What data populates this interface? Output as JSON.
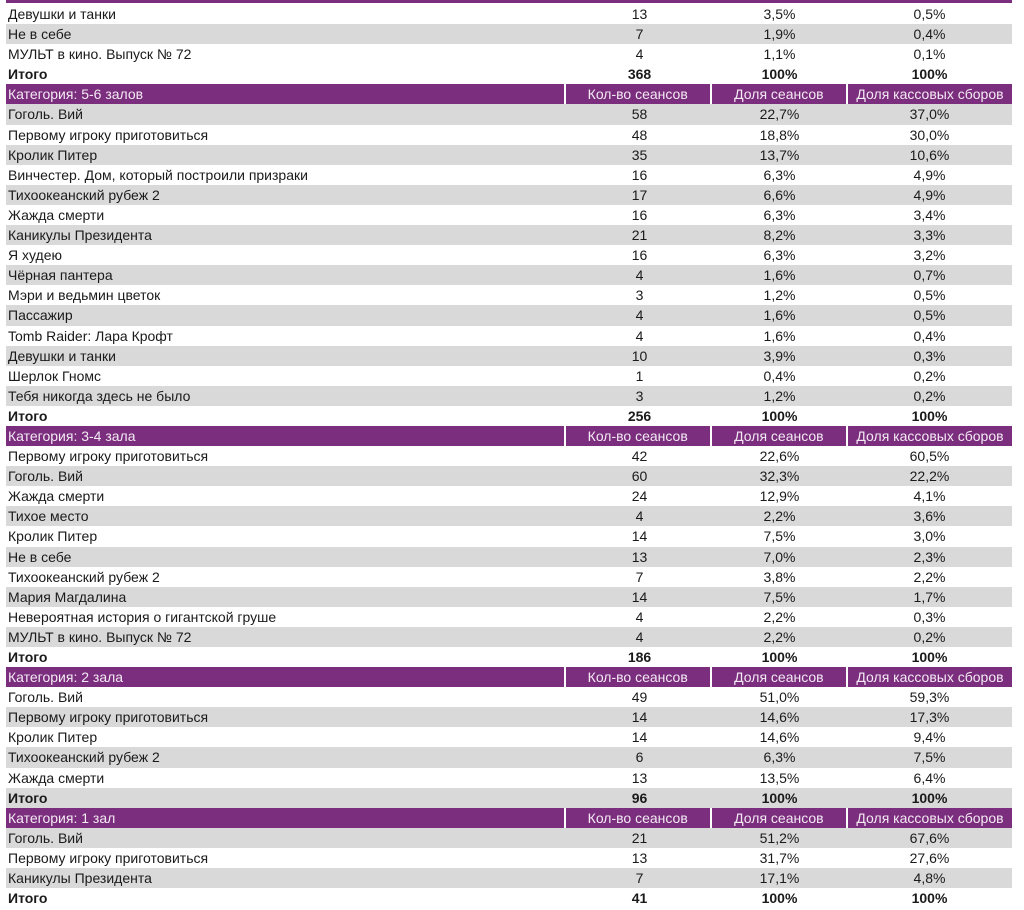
{
  "columns": {
    "count": "Кол-во сеансов",
    "share_sessions": "Доля сеансов",
    "share_box": "Доля кассовых сборов"
  },
  "total_label": "Итого",
  "colors": {
    "header": "#7b2e7d",
    "stripe": "#d9d9d9"
  },
  "sections": [
    {
      "title": null,
      "stripe_offset": 0,
      "total_shaded": false,
      "rows": [
        {
          "name": "Девушки и танки",
          "count": "13",
          "share": "3,5%",
          "box": "0,5%"
        },
        {
          "name": "Не в себе",
          "count": "7",
          "share": "1,9%",
          "box": "0,4%"
        },
        {
          "name": "МУЛЬТ в кино. Выпуск № 72",
          "count": "4",
          "share": "1,1%",
          "box": "0,1%"
        }
      ],
      "total": {
        "count": "368",
        "share": "100%",
        "box": "100%"
      }
    },
    {
      "title": "Категория: 5-6 залов",
      "stripe_offset": 1,
      "rows": [
        {
          "name": "Гоголь. Вий",
          "count": "58",
          "share": "22,7%",
          "box": "37,0%"
        },
        {
          "name": "Первому игроку приготовиться",
          "count": "48",
          "share": "18,8%",
          "box": "30,0%"
        },
        {
          "name": "Кролик Питер",
          "count": "35",
          "share": "13,7%",
          "box": "10,6%"
        },
        {
          "name": "Винчестер. Дом, который построили призраки",
          "count": "16",
          "share": "6,3%",
          "box": "4,9%"
        },
        {
          "name": "Тихоокеанский рубеж 2",
          "count": "17",
          "share": "6,6%",
          "box": "4,9%"
        },
        {
          "name": "Жажда смерти",
          "count": "16",
          "share": "6,3%",
          "box": "3,4%"
        },
        {
          "name": "Каникулы Президента",
          "count": "21",
          "share": "8,2%",
          "box": "3,3%"
        },
        {
          "name": "Я худею",
          "count": "16",
          "share": "6,3%",
          "box": "3,2%"
        },
        {
          "name": "Чёрная пантера",
          "count": "4",
          "share": "1,6%",
          "box": "0,7%"
        },
        {
          "name": "Мэри и ведьмин цветок",
          "count": "3",
          "share": "1,2%",
          "box": "0,5%"
        },
        {
          "name": "Пассажир",
          "count": "4",
          "share": "1,6%",
          "box": "0,5%"
        },
        {
          "name": "Tomb Raider: Лара Крофт",
          "count": "4",
          "share": "1,6%",
          "box": "0,4%"
        },
        {
          "name": "Девушки и танки",
          "count": "10",
          "share": "3,9%",
          "box": "0,3%"
        },
        {
          "name": "Шерлок Гномс",
          "count": "1",
          "share": "0,4%",
          "box": "0,2%"
        },
        {
          "name": "Тебя никогда здесь не было",
          "count": "3",
          "share": "1,2%",
          "box": "0,2%"
        }
      ],
      "total": {
        "count": "256",
        "share": "100%",
        "box": "100%"
      }
    },
    {
      "title": "Категория: 3-4 зала",
      "stripe_offset": 0,
      "rows": [
        {
          "name": "Первому игроку приготовиться",
          "count": "42",
          "share": "22,6%",
          "box": "60,5%"
        },
        {
          "name": "Гоголь. Вий",
          "count": "60",
          "share": "32,3%",
          "box": "22,2%"
        },
        {
          "name": "Жажда смерти",
          "count": "24",
          "share": "12,9%",
          "box": "4,1%"
        },
        {
          "name": "Тихое место",
          "count": "4",
          "share": "2,2%",
          "box": "3,6%"
        },
        {
          "name": "Кролик Питер",
          "count": "14",
          "share": "7,5%",
          "box": "3,0%"
        },
        {
          "name": "Не в себе",
          "count": "13",
          "share": "7,0%",
          "box": "2,3%"
        },
        {
          "name": "Тихоокеанский рубеж 2",
          "count": "7",
          "share": "3,8%",
          "box": "2,2%"
        },
        {
          "name": "Мария Магдалина",
          "count": "14",
          "share": "7,5%",
          "box": "1,7%"
        },
        {
          "name": "Невероятная история о гигантской груше",
          "count": "4",
          "share": "2,2%",
          "box": "0,3%"
        },
        {
          "name": "МУЛЬТ в кино. Выпуск № 72",
          "count": "4",
          "share": "2,2%",
          "box": "0,2%"
        }
      ],
      "total": {
        "count": "186",
        "share": "100%",
        "box": "100%"
      }
    },
    {
      "title": "Категория: 2 зала",
      "stripe_offset": 0,
      "rows": [
        {
          "name": "Гоголь. Вий",
          "count": "49",
          "share": "51,0%",
          "box": "59,3%"
        },
        {
          "name": "Первому игроку приготовиться",
          "count": "14",
          "share": "14,6%",
          "box": "17,3%"
        },
        {
          "name": "Кролик Питер",
          "count": "14",
          "share": "14,6%",
          "box": "9,4%"
        },
        {
          "name": "Тихоокеанский рубеж 2",
          "count": "6",
          "share": "6,3%",
          "box": "7,5%"
        },
        {
          "name": "Жажда смерти",
          "count": "13",
          "share": "13,5%",
          "box": "6,4%"
        }
      ],
      "total": {
        "count": "96",
        "share": "100%",
        "box": "100%"
      }
    },
    {
      "title": "Категория: 1 зал",
      "stripe_offset": 1,
      "rows": [
        {
          "name": "Гоголь. Вий",
          "count": "21",
          "share": "51,2%",
          "box": "67,6%"
        },
        {
          "name": "Первому игроку приготовиться",
          "count": "13",
          "share": "31,7%",
          "box": "27,6%"
        },
        {
          "name": "Каникулы Президента",
          "count": "7",
          "share": "17,1%",
          "box": "4,8%"
        }
      ],
      "total": {
        "count": "41",
        "share": "100%",
        "box": "100%"
      }
    }
  ]
}
